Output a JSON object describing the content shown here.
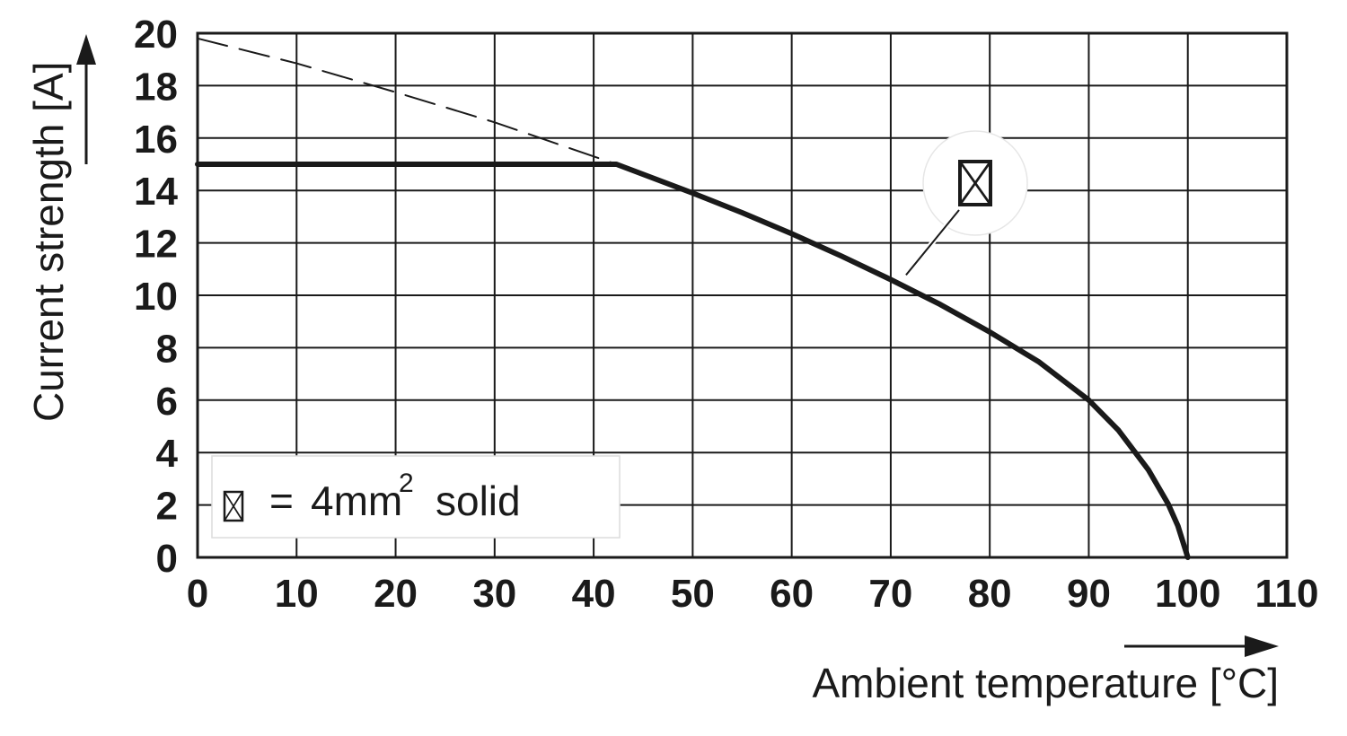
{
  "chart_data": {
    "type": "line",
    "xlabel": "Ambient temperature [°C]",
    "ylabel": "Current strength [A]",
    "xlim": [
      0,
      110
    ],
    "ylim": [
      0,
      20
    ],
    "x_ticks": [
      "0",
      "10",
      "20",
      "30",
      "40",
      "50",
      "60",
      "70",
      "80",
      "90",
      "100",
      "110"
    ],
    "y_ticks": [
      "0",
      "2",
      "4",
      "6",
      "8",
      "10",
      "12",
      "14",
      "16",
      "18",
      "20"
    ],
    "grid": true,
    "legend_position": "bottom-left",
    "series": [
      {
        "name": "4mm2 solid",
        "style": "solid",
        "color": "#1a1a1a",
        "x": [
          0,
          42.3,
          50,
          55,
          60,
          65,
          70,
          75,
          80,
          85,
          90,
          93,
          96,
          98,
          99,
          100
        ],
        "y": [
          15,
          15,
          13.9,
          13.15,
          12.35,
          11.5,
          10.6,
          9.65,
          8.6,
          7.45,
          6.0,
          4.85,
          3.35,
          2.05,
          1.2,
          0
        ]
      },
      {
        "style": "dashed",
        "color": "#1a1a1a",
        "x": [
          0,
          10,
          20,
          30,
          42.3
        ],
        "y": [
          19.8,
          18.85,
          17.75,
          16.6,
          15
        ]
      }
    ],
    "legend": {
      "symbol": "wire-cross-section-icon",
      "equals": "=",
      "text_main": "4mm",
      "text_sup": "2",
      "text_tail": "solid"
    },
    "annotation": {
      "symbol": "wire-cross-section-icon",
      "points_to": {
        "x": 71,
        "y": 10.5
      }
    }
  }
}
